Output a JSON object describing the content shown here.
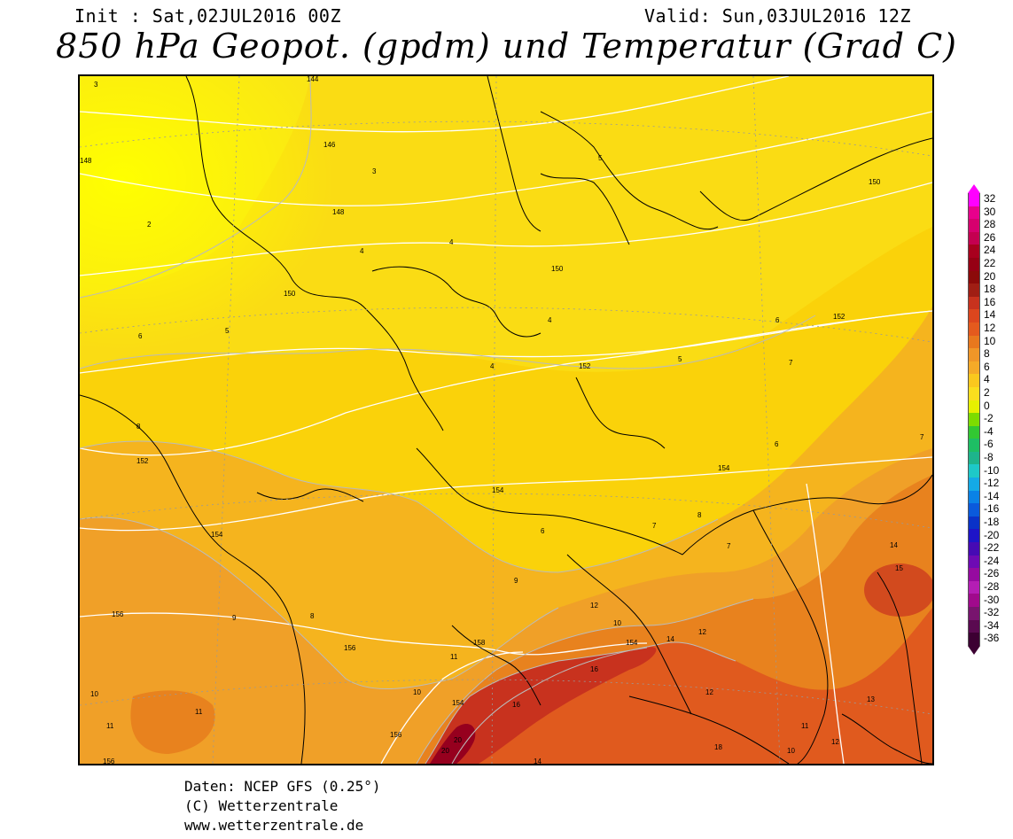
{
  "header": {
    "init": "Init : Sat,02JUL2016 00Z",
    "valid": "Valid: Sun,03JUL2016 12Z",
    "title": "850 hPa Geopot. (gpdm) und Temperatur (Grad C)"
  },
  "colorbar": {
    "labels": [
      "32",
      "30",
      "28",
      "26",
      "24",
      "22",
      "20",
      "18",
      "16",
      "14",
      "12",
      "10",
      "8",
      "6",
      "4",
      "2",
      "0",
      "-2",
      "-4",
      "-6",
      "-8",
      "-10",
      "-12",
      "-14",
      "-16",
      "-18",
      "-20",
      "-22",
      "-24",
      "-26",
      "-28",
      "-30",
      "-32",
      "-34",
      "-36"
    ],
    "colors": [
      "#ff00ff",
      "#e8008c",
      "#d6006e",
      "#c40050",
      "#a8001e",
      "#960014",
      "#8c0a0a",
      "#a01e14",
      "#c8321e",
      "#dc461e",
      "#e45a1e",
      "#e8781e",
      "#f09628",
      "#f5aa28",
      "#fac81e",
      "#fade1e",
      "#e6f000",
      "#7ddc00",
      "#32c832",
      "#1ebe64",
      "#1eb48c",
      "#1ec8c8",
      "#14aae6",
      "#0a82e6",
      "#0a5adc",
      "#0a32c8",
      "#1e14c8",
      "#460ab4",
      "#6e0ab4",
      "#960aa0",
      "#b41eb4",
      "#a00a8c",
      "#78146e",
      "#5a0a50",
      "#3c0032"
    ]
  },
  "map": {
    "geopotential_labels": [
      "144",
      "146",
      "148",
      "148",
      "150",
      "150",
      "150",
      "152",
      "152",
      "152",
      "154",
      "154",
      "154",
      "154",
      "156",
      "156",
      "156",
      "158",
      "154",
      "156"
    ],
    "temperature_labels": [
      "3",
      "2",
      "3",
      "4",
      "4",
      "4",
      "4",
      "5",
      "5",
      "5",
      "6",
      "6",
      "6",
      "6",
      "7",
      "7",
      "7",
      "7",
      "8",
      "8",
      "8",
      "9",
      "9",
      "10",
      "10",
      "10",
      "11",
      "11",
      "11",
      "12",
      "12",
      "12",
      "13",
      "14",
      "14",
      "15",
      "16",
      "16",
      "18",
      "20",
      "20",
      "14",
      "11",
      "10",
      "12"
    ]
  },
  "footer": {
    "line1": "Daten: NCEP GFS (0.25°)",
    "line2": "(C) Wetterzentrale",
    "line3": "www.wetterzentrale.de"
  }
}
